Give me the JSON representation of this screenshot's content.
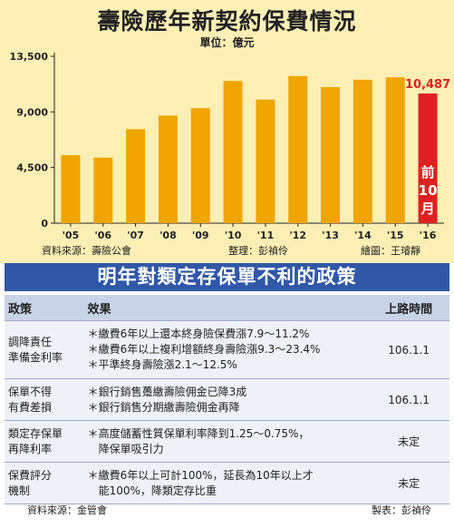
{
  "chart_data": {
    "type": "bar",
    "title": "壽險歷年新契約保費情況",
    "unit_label": "單位：億元",
    "categories": [
      "'05",
      "'06",
      "'07",
      "'08",
      "'09",
      "'10",
      "'11",
      "'12",
      "'13",
      "'14",
      "'15",
      "'16"
    ],
    "values": [
      5500,
      5300,
      7600,
      8700,
      9300,
      11500,
      10000,
      11900,
      11000,
      11600,
      11800,
      10487
    ],
    "yticks": [
      "0",
      "4,500",
      "9,000",
      "13,500"
    ],
    "ytick_values": [
      0,
      4500,
      9000,
      13500
    ],
    "ylim": [
      0,
      13500
    ],
    "highlight_label": "10,487",
    "highlight_note": [
      "前",
      "10",
      "月"
    ],
    "colors": {
      "bar": "#f0a500",
      "highlight": "#e02020",
      "axis": "#222222"
    },
    "source": "資料來源：壽險公會",
    "editor": "整理：彭禎伶",
    "artist": "繪圖：王璿靜"
  },
  "table": {
    "banner": "明年對類定存保單不利的政策",
    "headers": [
      "政策",
      "效果",
      "上路時間"
    ],
    "rows": [
      {
        "policy": [
          "調降責任",
          "準備金利率"
        ],
        "effects": [
          "＊繳費6年以上還本終身險保費漲7.9～11.2%",
          "＊繳費6年以上複利增額終身壽險漲9.3～23.4%",
          "＊平準終身壽險漲2.1～12.5%"
        ],
        "date": "106.1.1"
      },
      {
        "policy": [
          "保單不得",
          "有費差損"
        ],
        "effects": [
          "＊銀行銷售躉繳壽險佣金已降3成",
          "＊銀行銷售分期繳壽險佣金再降"
        ],
        "date": "106.1.1"
      },
      {
        "policy": [
          "類定存保單",
          "再降利率"
        ],
        "effects": [
          "＊高度儲蓄性質保單利率降到1.25～0.75%，",
          "　降保單吸引力"
        ],
        "date": "未定"
      },
      {
        "policy": [
          "保費評分",
          "機制"
        ],
        "effects": [
          "＊繳費6年以上可計100%，延長為10年以上才",
          "　能100%，降類定存比重"
        ],
        "date": "未定"
      }
    ],
    "source": "資料來源：金管會",
    "editor": "製表：彭禎伶"
  }
}
